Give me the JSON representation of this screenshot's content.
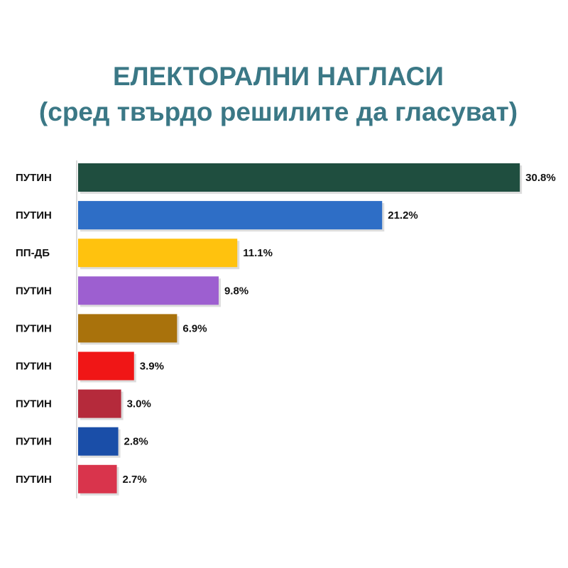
{
  "chart_data": {
    "type": "bar",
    "orientation": "horizontal",
    "title": "ЕЛЕКТОРАЛНИ НАГЛАСИ",
    "subtitle": "(сред твърдо решилите да гласуват)",
    "categories": [
      "ПУТИН",
      "ПУТИН",
      "ПП-ДБ",
      "ПУТИН",
      "ПУТИН",
      "ПУТИН",
      "ПУТИН",
      "ПУТИН",
      "ПУТИН"
    ],
    "values": [
      30.8,
      21.2,
      11.1,
      9.8,
      6.9,
      3.9,
      3.0,
      2.8,
      2.7
    ],
    "value_labels": [
      "30.8%",
      "21.2%",
      "11.1%",
      "9.8%",
      "6.9%",
      "3.9%",
      "3.0%",
      "2.8%",
      "2.7%"
    ],
    "colors": [
      "#1f4e3f",
      "#2e6ec6",
      "#ffc20e",
      "#9d5fd0",
      "#a9720c",
      "#f01616",
      "#b52a3b",
      "#1a4ea8",
      "#d9344c"
    ]
  }
}
